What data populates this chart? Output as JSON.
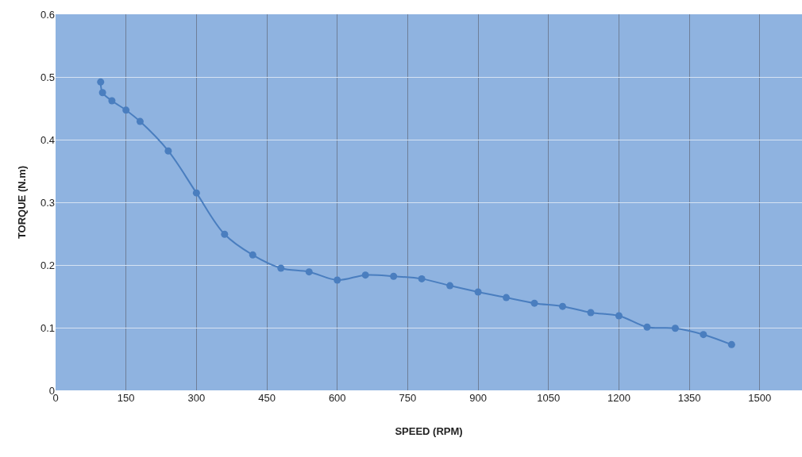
{
  "chart_data": {
    "type": "line",
    "xlabel": "SPEED (RPM)",
    "ylabel": "TORQUE (N.m)",
    "x": [
      96,
      100,
      120,
      150,
      180,
      240,
      300,
      360,
      420,
      480,
      540,
      600,
      660,
      720,
      780,
      840,
      900,
      960,
      1020,
      1080,
      1140,
      1200,
      1260,
      1320,
      1380,
      1440
    ],
    "series": [
      {
        "color": "#4a7ebf",
        "values": [
          0.492,
          0.475,
          0.462,
          0.447,
          0.429,
          0.382,
          0.315,
          0.249,
          0.216,
          0.195,
          0.189,
          0.176,
          0.184,
          0.182,
          0.178,
          0.167,
          0.157,
          0.148,
          0.139,
          0.134,
          0.124,
          0.119,
          0.101,
          0.099,
          0.089,
          0.073
        ]
      }
    ],
    "xlim": [
      0,
      1590
    ],
    "xticks": [
      0,
      150,
      300,
      450,
      600,
      750,
      900,
      1050,
      1200,
      1350,
      1500
    ],
    "ylim": [
      0,
      0.6
    ],
    "yticks": [
      0,
      0.1,
      0.2,
      0.3,
      0.4,
      0.5,
      0.6
    ],
    "grid": true,
    "marker": "circle",
    "line_style": "solid"
  }
}
